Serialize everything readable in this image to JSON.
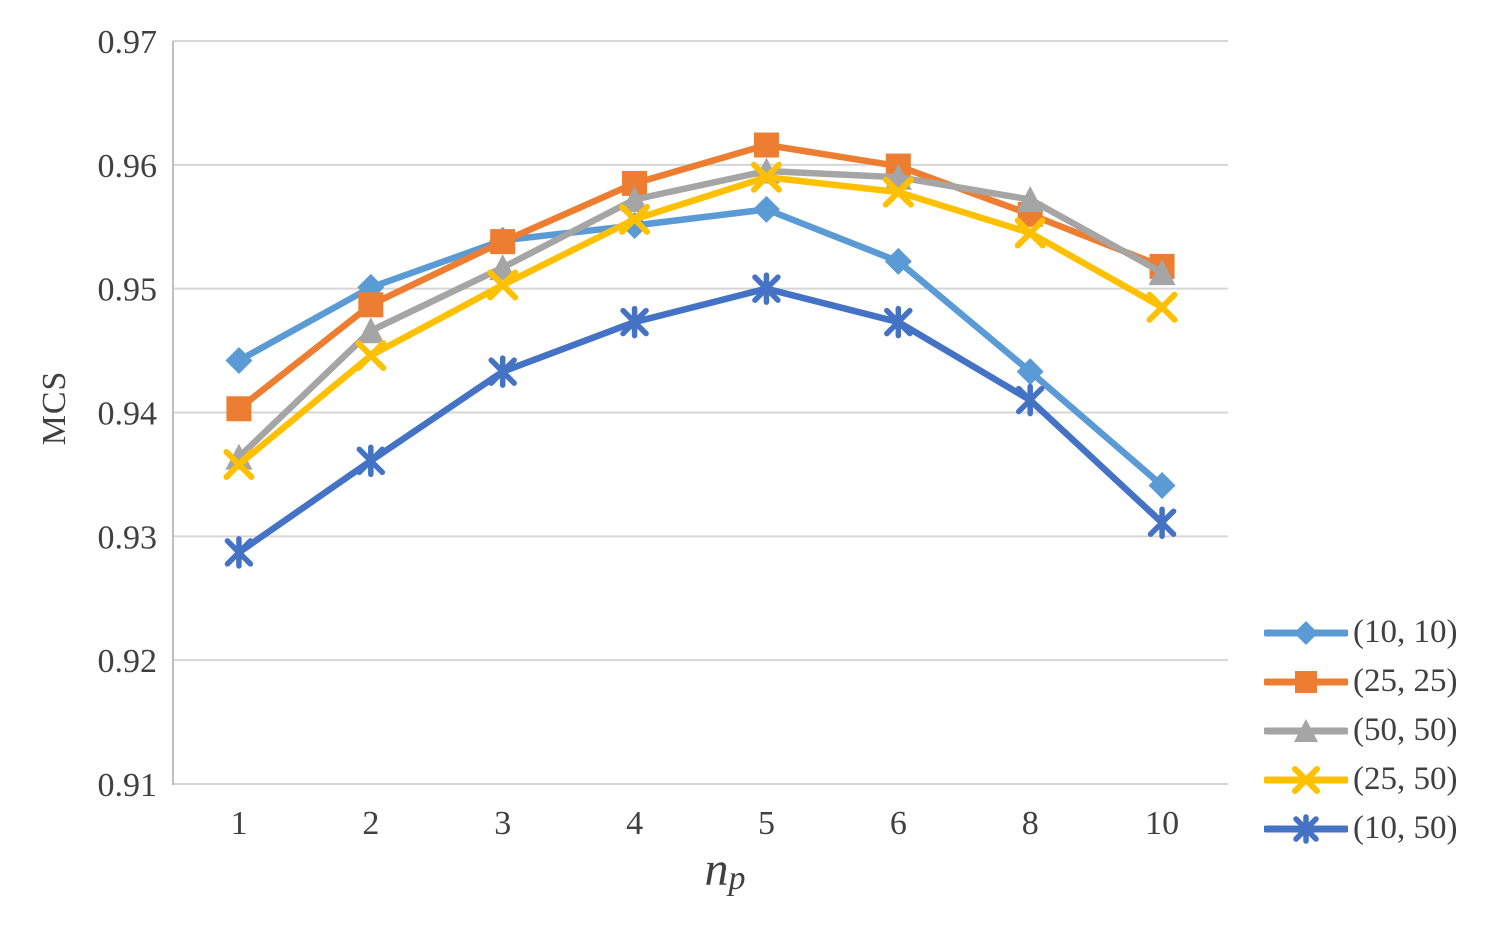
{
  "chart_data": {
    "type": "line",
    "title": "",
    "ylabel": "MCS",
    "xlabel_main": "n",
    "xlabel_sub": "p",
    "categories": [
      "1",
      "2",
      "3",
      "4",
      "5",
      "6",
      "8",
      "10"
    ],
    "y_ticks": [
      0.97,
      0.96,
      0.95,
      0.94,
      0.93,
      0.92,
      0.91
    ],
    "ylim": [
      0.91,
      0.97
    ],
    "grid": "horizontal",
    "legend_position": "right",
    "series": [
      {
        "name": "(10, 10)",
        "color": "#5B9BD5",
        "marker": "diamond",
        "values": [
          0.9442,
          0.9501,
          0.9539,
          0.9551,
          0.9564,
          0.9522,
          0.9433,
          0.9341
        ]
      },
      {
        "name": "(25, 25)",
        "color": "#ED7D31",
        "marker": "square",
        "values": [
          0.9403,
          0.9487,
          0.9538,
          0.9585,
          0.9616,
          0.9599,
          0.956,
          0.9518
        ]
      },
      {
        "name": "(50, 50)",
        "color": "#A5A5A5",
        "marker": "triangle",
        "values": [
          0.9364,
          0.9466,
          0.9517,
          0.9572,
          0.9595,
          0.959,
          0.9572,
          0.9513
        ]
      },
      {
        "name": "(25, 50)",
        "color": "#FFC000",
        "marker": "x",
        "values": [
          0.9358,
          0.9446,
          0.9503,
          0.9556,
          0.959,
          0.9578,
          0.9545,
          0.9485
        ]
      },
      {
        "name": "(10, 50)",
        "color": "#4472C4",
        "marker": "star",
        "values": [
          0.9287,
          0.9361,
          0.9433,
          0.9473,
          0.95,
          0.9473,
          0.941,
          0.9311
        ]
      }
    ],
    "colors": {
      "gridline": "#D6D6D6",
      "axis": "#BFBFBF",
      "tick_text": "#404040"
    }
  }
}
